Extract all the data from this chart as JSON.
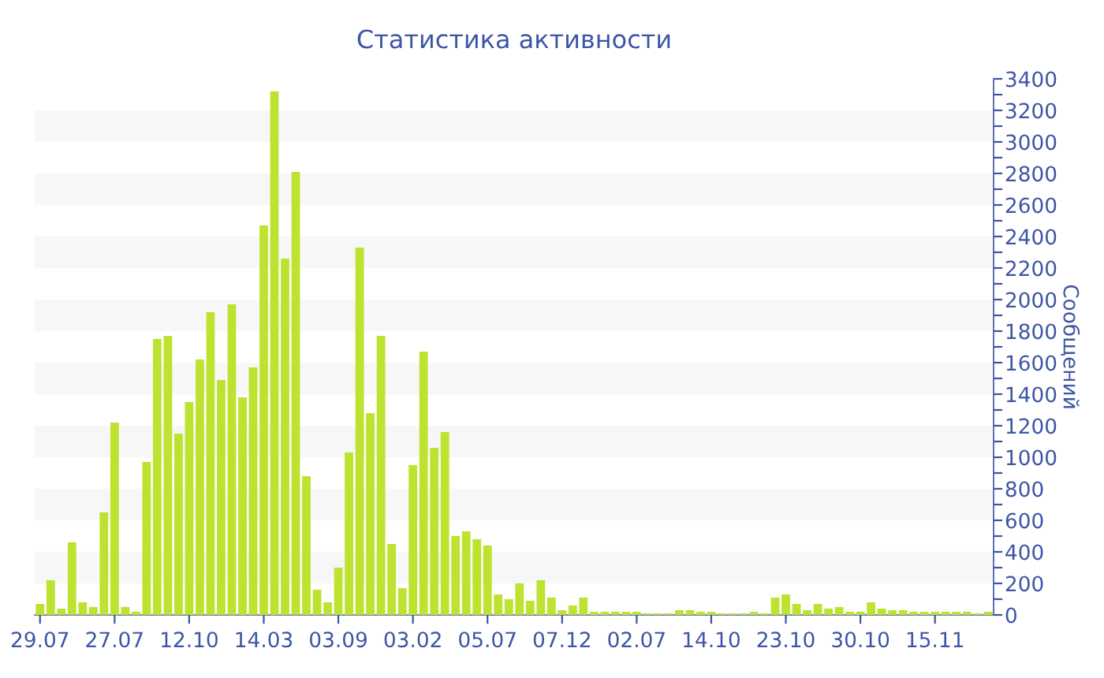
{
  "chart_data": {
    "type": "bar",
    "title": "Статистика активности",
    "ylabel": "Сообщений",
    "categories": [
      "29.07",
      null,
      null,
      null,
      null,
      null,
      null,
      "27.07",
      null,
      null,
      null,
      null,
      null,
      null,
      "12.10",
      null,
      null,
      null,
      null,
      null,
      null,
      "14.03",
      null,
      null,
      null,
      null,
      null,
      null,
      "03.09",
      null,
      null,
      null,
      null,
      null,
      null,
      "03.02",
      null,
      null,
      null,
      null,
      null,
      null,
      "05.07",
      null,
      null,
      null,
      null,
      null,
      null,
      "07.12",
      null,
      null,
      null,
      null,
      null,
      null,
      "02.07",
      null,
      null,
      null,
      null,
      null,
      null,
      "14.10",
      null,
      null,
      null,
      null,
      null,
      null,
      "23.10",
      null,
      null,
      null,
      null,
      null,
      null,
      "30.10",
      null,
      null,
      null,
      null,
      null,
      null,
      "15.11",
      null,
      null,
      null,
      null,
      null
    ],
    "values": [
      70,
      220,
      40,
      460,
      80,
      50,
      650,
      1220,
      50,
      20,
      970,
      1750,
      1770,
      1150,
      1350,
      1620,
      1920,
      1490,
      1970,
      1380,
      1570,
      2470,
      3320,
      2260,
      2810,
      880,
      160,
      80,
      300,
      1030,
      2330,
      1280,
      1770,
      450,
      170,
      950,
      1670,
      1060,
      1160,
      500,
      530,
      480,
      440,
      130,
      100,
      200,
      90,
      220,
      110,
      30,
      60,
      110,
      20,
      20,
      20,
      20,
      20,
      10,
      10,
      10,
      30,
      30,
      20,
      20,
      10,
      10,
      10,
      20,
      10,
      110,
      130,
      70,
      30,
      70,
      40,
      50,
      20,
      20,
      80,
      40,
      30,
      30,
      20,
      20,
      20,
      20,
      20,
      20,
      10,
      20
    ],
    "color": "#bde22f",
    "ylim": [
      0,
      3400
    ],
    "yticks": [
      0,
      {
        "value": 100,
        "label": null
      },
      200,
      {
        "value": 300,
        "label": null
      },
      400,
      {
        "value": 500,
        "label": null
      },
      600,
      {
        "value": 700,
        "label": null
      },
      800,
      {
        "value": 900,
        "label": null
      },
      1000,
      {
        "value": 1100,
        "label": null
      },
      1200,
      {
        "value": 1300,
        "label": null
      },
      1400,
      {
        "value": 1500,
        "label": null
      },
      1600,
      {
        "value": 1700,
        "label": null
      },
      1800,
      {
        "value": 1900,
        "label": null
      },
      2000,
      {
        "value": 2100,
        "label": null
      },
      2200,
      {
        "value": 2300,
        "label": null
      },
      2400,
      {
        "value": 2500,
        "label": null
      },
      2600,
      {
        "value": 2700,
        "label": null
      },
      2800,
      {
        "value": 2900,
        "label": null
      },
      3000,
      {
        "value": 3100,
        "label": null
      },
      3200,
      {
        "value": 3300,
        "label": null
      },
      3400
    ],
    "grid": false,
    "legend": false
  }
}
